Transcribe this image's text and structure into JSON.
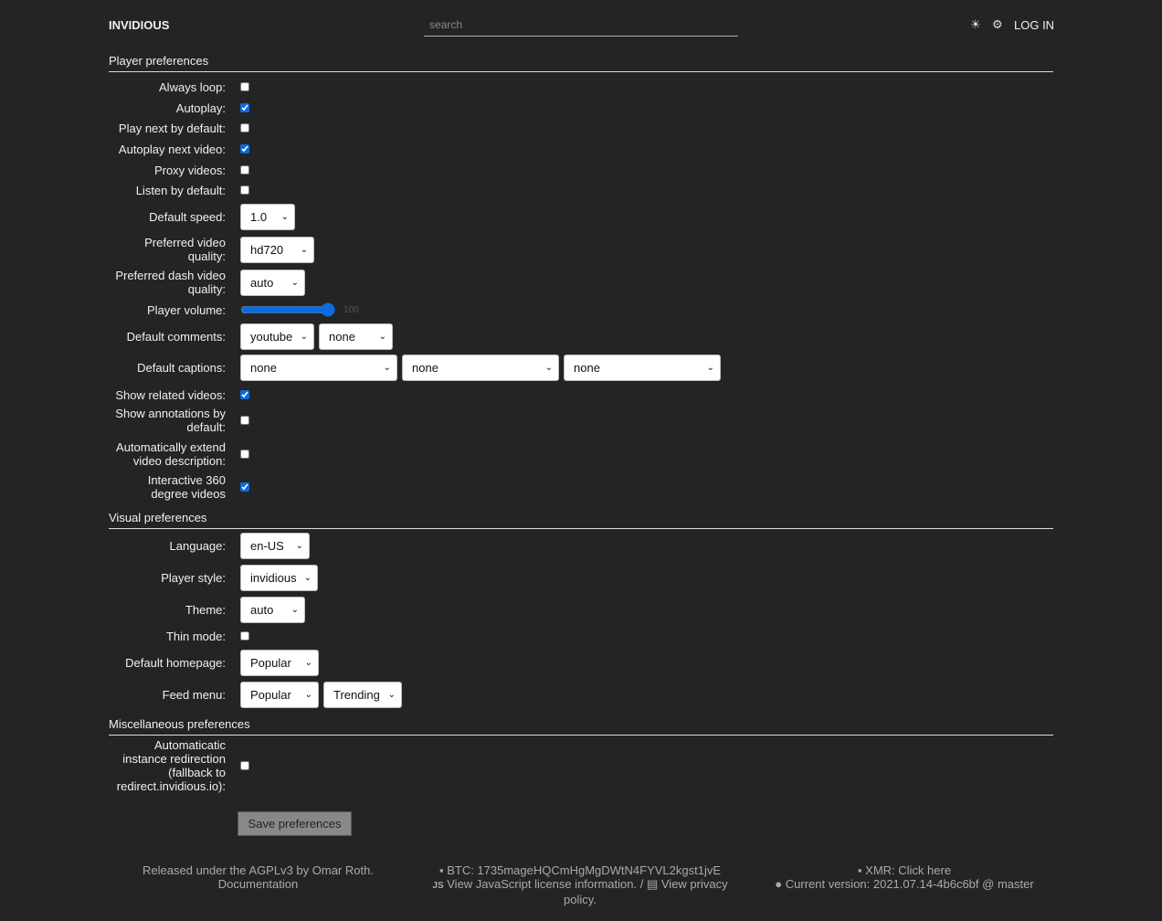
{
  "header": {
    "brand": "INVIDIOUS",
    "search_placeholder": "search",
    "theme_icon": "sun-icon",
    "settings_icon": "gear-icon",
    "login": "LOG IN"
  },
  "sections": [
    {
      "title": "Player preferences",
      "rows": [
        {
          "label": "Always loop:",
          "type": "checkbox",
          "checked": false
        },
        {
          "label": "Autoplay:",
          "type": "checkbox",
          "checked": true
        },
        {
          "label": "Play next by default:",
          "type": "checkbox",
          "checked": false
        },
        {
          "label": "Autoplay next video:",
          "type": "checkbox",
          "checked": true
        },
        {
          "label": "Proxy videos:",
          "type": "checkbox",
          "checked": false
        },
        {
          "label": "Listen by default:",
          "type": "checkbox",
          "checked": false
        },
        {
          "label": "Default speed:",
          "type": "select",
          "values": [
            "1.0"
          ]
        },
        {
          "label": "Preferred video quality:",
          "type": "select",
          "values": [
            "hd720"
          ]
        },
        {
          "label": "Preferred dash video quality:",
          "type": "select",
          "values": [
            "auto"
          ]
        },
        {
          "label": "Player volume:",
          "type": "range",
          "value": 100
        },
        {
          "label": "Default comments:",
          "type": "select",
          "values": [
            "youtube",
            "none"
          ]
        },
        {
          "label": "Default captions:",
          "type": "select",
          "values": [
            "none",
            "none",
            "none"
          ]
        },
        {
          "label": "Show related videos:",
          "type": "checkbox",
          "checked": true
        },
        {
          "label": "Show annotations by default:",
          "type": "checkbox",
          "checked": false
        },
        {
          "label": "Automatically extend video description:",
          "type": "checkbox",
          "checked": false
        },
        {
          "label": "Interactive 360 degree videos",
          "type": "checkbox",
          "checked": true
        }
      ]
    },
    {
      "title": "Visual preferences",
      "rows": [
        {
          "label": "Language:",
          "type": "select",
          "values": [
            "en-US"
          ]
        },
        {
          "label": "Player style:",
          "type": "select",
          "values": [
            "invidious"
          ]
        },
        {
          "label": "Theme:",
          "type": "select",
          "values": [
            "auto"
          ]
        },
        {
          "label": "Thin mode:",
          "type": "checkbox",
          "checked": false
        },
        {
          "label": "Default homepage:",
          "type": "select",
          "values": [
            "Popular"
          ]
        },
        {
          "label": "Feed menu:",
          "type": "select",
          "values": [
            "Popular",
            "Trending"
          ]
        }
      ]
    },
    {
      "title": "Miscellaneous preferences",
      "rows": [
        {
          "label": "Automaticatic instance redirection (fallback to redirect.invidious.io):",
          "type": "checkbox",
          "checked": false
        }
      ]
    }
  ],
  "save_label": "Save preferences",
  "footer": {
    "license": "Released under the AGPLv3 by Omar Roth.",
    "docs": "Documentation",
    "btc": "BTC: 1735mageHQCmHgMgDWtN4FYVL2kgst1jvE",
    "js_license": "View JavaScript license information.",
    "separator": " / ",
    "privacy": "View privacy policy.",
    "xmr": "XMR: Click here",
    "version": "Current version: 2021.07.14-4b6c6bf @ master"
  }
}
